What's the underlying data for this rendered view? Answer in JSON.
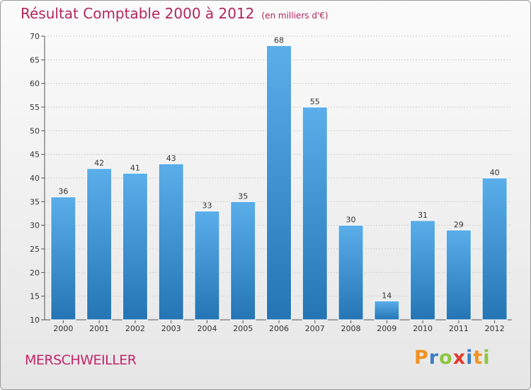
{
  "header": {
    "title": "Résultat Comptable 2000 à 2012",
    "unit": "(en milliers d'€)"
  },
  "commune": "MERSCHWEILLER",
  "logo": {
    "text": "Proxiti",
    "letters": [
      {
        "ch": "P",
        "color": "#f29221"
      },
      {
        "ch": "r",
        "color": "#3b7fc4"
      },
      {
        "ch": "o",
        "color": "#8cc63f"
      },
      {
        "ch": "x",
        "color": "#e23a2c"
      },
      {
        "ch": "i",
        "color": "#3b7fc4"
      },
      {
        "ch": "t",
        "color": "#f29221"
      },
      {
        "ch": "i",
        "color": "#8cc63f"
      }
    ]
  },
  "colors": {
    "title": "#b2265c",
    "bar_top": "#5aaeea",
    "bar_bottom": "#2575b5"
  },
  "chart_data": {
    "type": "bar",
    "title": "Résultat Comptable 2000 à 2012 (en milliers d'€)",
    "xlabel": "",
    "ylabel": "",
    "categories": [
      "2000",
      "2001",
      "2002",
      "2003",
      "2004",
      "2005",
      "2006",
      "2007",
      "2008",
      "2009",
      "2010",
      "2011",
      "2012"
    ],
    "values": [
      36,
      42,
      41,
      43,
      33,
      35,
      68,
      55,
      30,
      14,
      31,
      29,
      40
    ],
    "ylim": [
      10,
      70
    ],
    "yticks": [
      10,
      15,
      20,
      25,
      30,
      35,
      40,
      45,
      50,
      55,
      60,
      65,
      70
    ],
    "grid": true
  }
}
